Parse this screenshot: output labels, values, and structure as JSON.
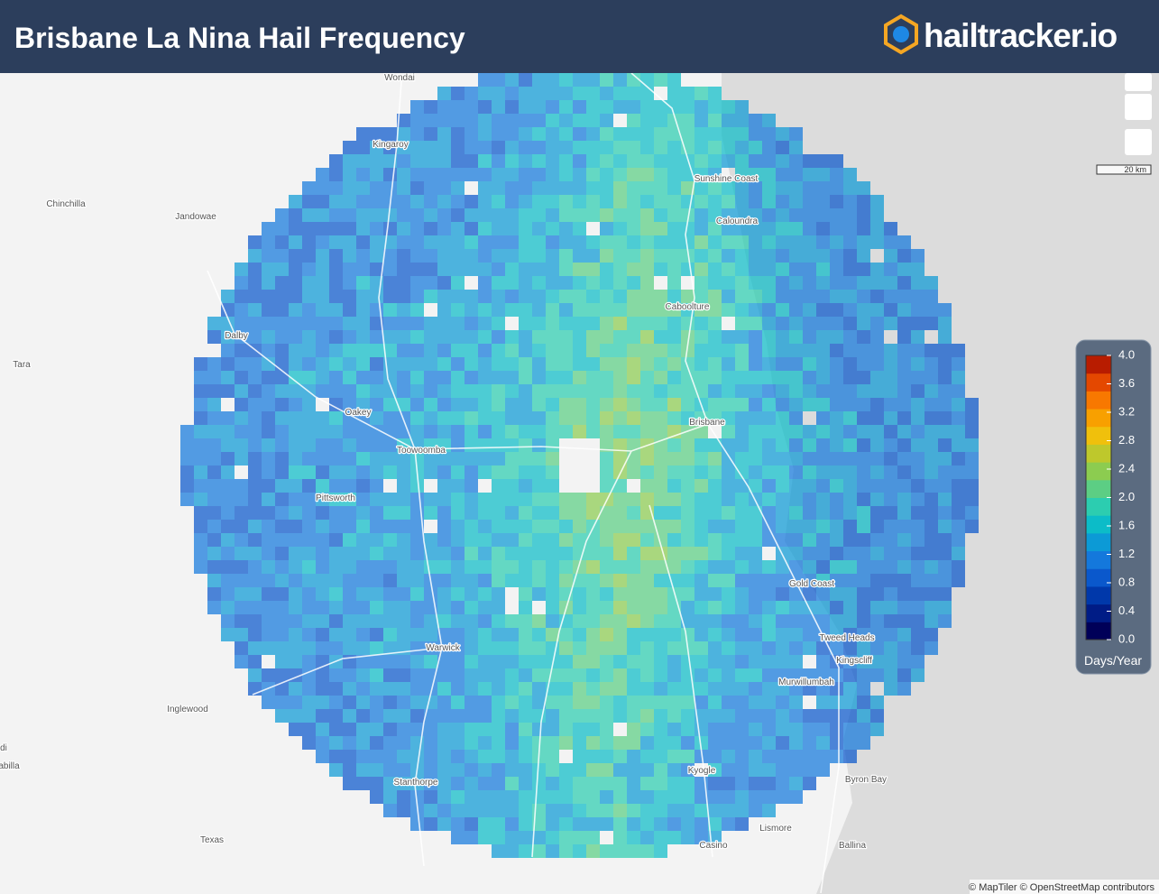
{
  "header": {
    "title": "Brisbane La Nina Hail Frequency",
    "logo": "hailtracker.io"
  },
  "places": [
    "Wondai",
    "Kingaroy",
    "Chinchilla",
    "Jandowae",
    "Sunshine Coast",
    "Caloundra",
    "Caboolture",
    "Dalby",
    "Tara",
    "Brisbane",
    "Oakey",
    "Toowoomba",
    "Pittsworth",
    "Gold Coast",
    "Tweed Heads",
    "Kingscliff",
    "Murwillumbah",
    "Warwick",
    "Inglewood",
    "Kyogle",
    "Byron Bay",
    "Stanthorpe",
    "Lismore",
    "Texas",
    "Casino",
    "Ballina",
    "di",
    "abilla"
  ],
  "legend": {
    "unit": "Days/Year",
    "range": [
      0,
      4
    ],
    "ticks": [
      {
        "value": 0,
        "label": "0.0"
      },
      {
        "value": 0.4,
        "label": "0.4"
      },
      {
        "value": 0.8,
        "label": "0.8"
      },
      {
        "value": 1.2,
        "label": "1.2"
      },
      {
        "value": 1.6,
        "label": "1.6"
      },
      {
        "value": 2,
        "label": "2.0"
      },
      {
        "value": 2.4,
        "label": "2.4"
      },
      {
        "value": 2.8,
        "label": "2.8"
      },
      {
        "value": 3.2,
        "label": "3.2"
      },
      {
        "value": 3.6,
        "label": "3.6"
      },
      {
        "value": 4,
        "label": "4.0"
      }
    ],
    "colors": [
      "#000058",
      "#001c86",
      "#0038aa",
      "#0a58cc",
      "#1478dc",
      "#0c9ad6",
      "#0cbcc8",
      "#2ccdb0",
      "#5cce84",
      "#8ccc50",
      "#bec82c",
      "#f0c00c",
      "#f8a000",
      "#f87800",
      "#e44800",
      "#b81c00"
    ]
  },
  "scale": "20 km",
  "attribution": "© MapTiler © OpenStreetMap contributors"
}
